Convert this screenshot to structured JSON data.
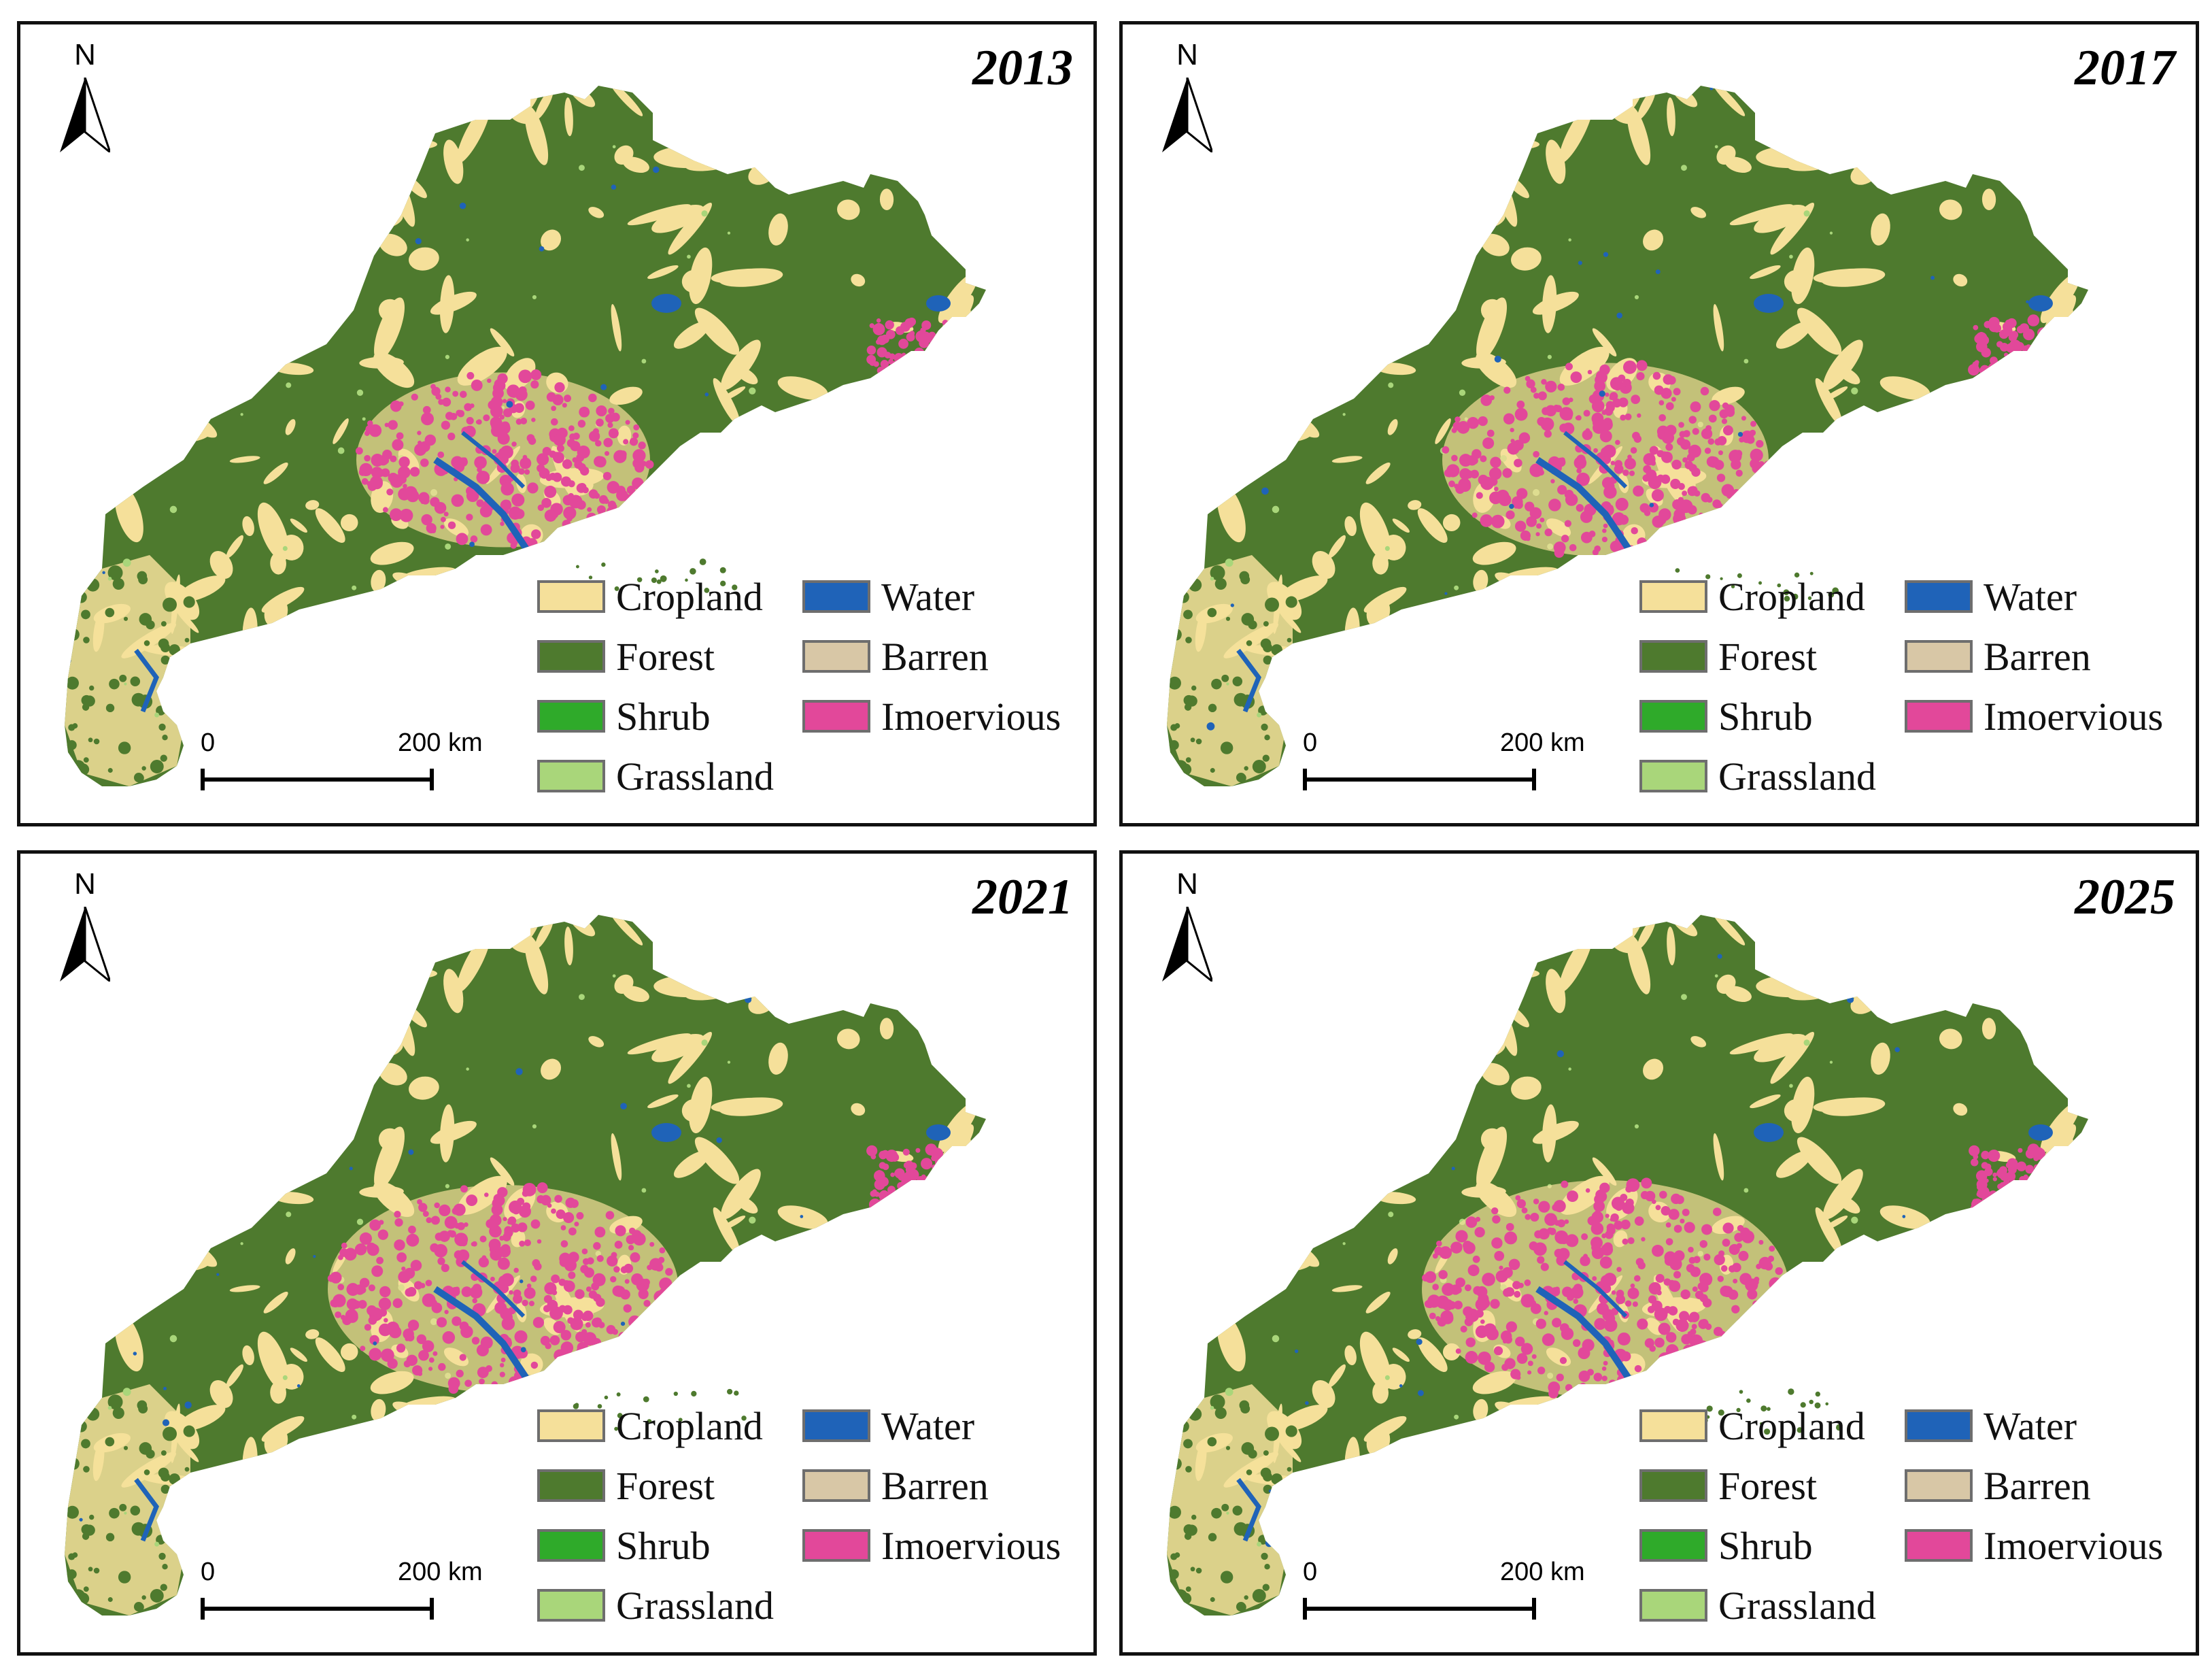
{
  "colors": {
    "cropland": "#f5e09a",
    "forest": "#4e7a2e",
    "shrub": "#2faa2a",
    "grassland": "#a9d67a",
    "water": "#1f63b8",
    "barren": "#d8c7a6",
    "impervious": "#e2489a"
  },
  "north_label": "N",
  "scale_bar": {
    "start": "0",
    "end": "200 km"
  },
  "legend": [
    {
      "label": "Cropland",
      "color": "#f5e09a"
    },
    {
      "label": "Forest",
      "color": "#4e7a2e"
    },
    {
      "label": "Shrub",
      "color": "#2faa2a"
    },
    {
      "label": "Grassland",
      "color": "#a9d67a"
    },
    {
      "label": "Water",
      "color": "#1f63b8"
    },
    {
      "label": "Barren",
      "color": "#d8c7a6"
    },
    {
      "label": "Imoervious",
      "color": "#e2489a"
    }
  ],
  "panels": [
    {
      "year": "2013",
      "impervious_level": 0.55
    },
    {
      "year": "2017",
      "impervious_level": 0.75
    },
    {
      "year": "2021",
      "impervious_level": 0.9
    },
    {
      "year": "2025",
      "impervious_level": 1.0
    }
  ]
}
